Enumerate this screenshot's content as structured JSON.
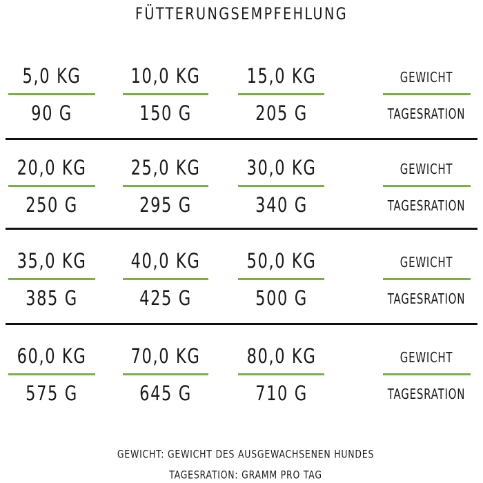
{
  "title": "FÜTTERUNGSEMPFEHLUNG",
  "rows": [
    {
      "cells": [
        {
          "weight": "5,0 KG",
          "ration": "90 G"
        },
        {
          "weight": "10,0 KG",
          "ration": "150 G"
        },
        {
          "weight": "15,0 KG",
          "ration": "205 G"
        }
      ],
      "legend": {
        "weight": "GEWICHT",
        "ration": "TAGESRATION"
      }
    },
    {
      "cells": [
        {
          "weight": "20,0 KG",
          "ration": "250 G"
        },
        {
          "weight": "25,0 KG",
          "ration": "295 G"
        },
        {
          "weight": "30,0 KG",
          "ration": "340 G"
        }
      ],
      "legend": {
        "weight": "GEWICHT",
        "ration": "TAGESRATION"
      }
    },
    {
      "cells": [
        {
          "weight": "35,0 KG",
          "ration": "385 G"
        },
        {
          "weight": "40,0 KG",
          "ration": "425 G"
        },
        {
          "weight": "50,0 KG",
          "ration": "500 G"
        }
      ],
      "legend": {
        "weight": "GEWICHT",
        "ration": "TAGESRATION"
      }
    },
    {
      "cells": [
        {
          "weight": "60,0 KG",
          "ration": "575 G"
        },
        {
          "weight": "70,0 KG",
          "ration": "645 G"
        },
        {
          "weight": "80,0 KG",
          "ration": "710 G"
        }
      ],
      "legend": {
        "weight": "GEWICHT",
        "ration": "TAGESRATION"
      }
    }
  ],
  "footnotes": [
    "GEWICHT: GEWICHT DES AUSGEWACHSENEN HUNDES",
    "TAGESRATION: GRAMM PRO TAG"
  ]
}
